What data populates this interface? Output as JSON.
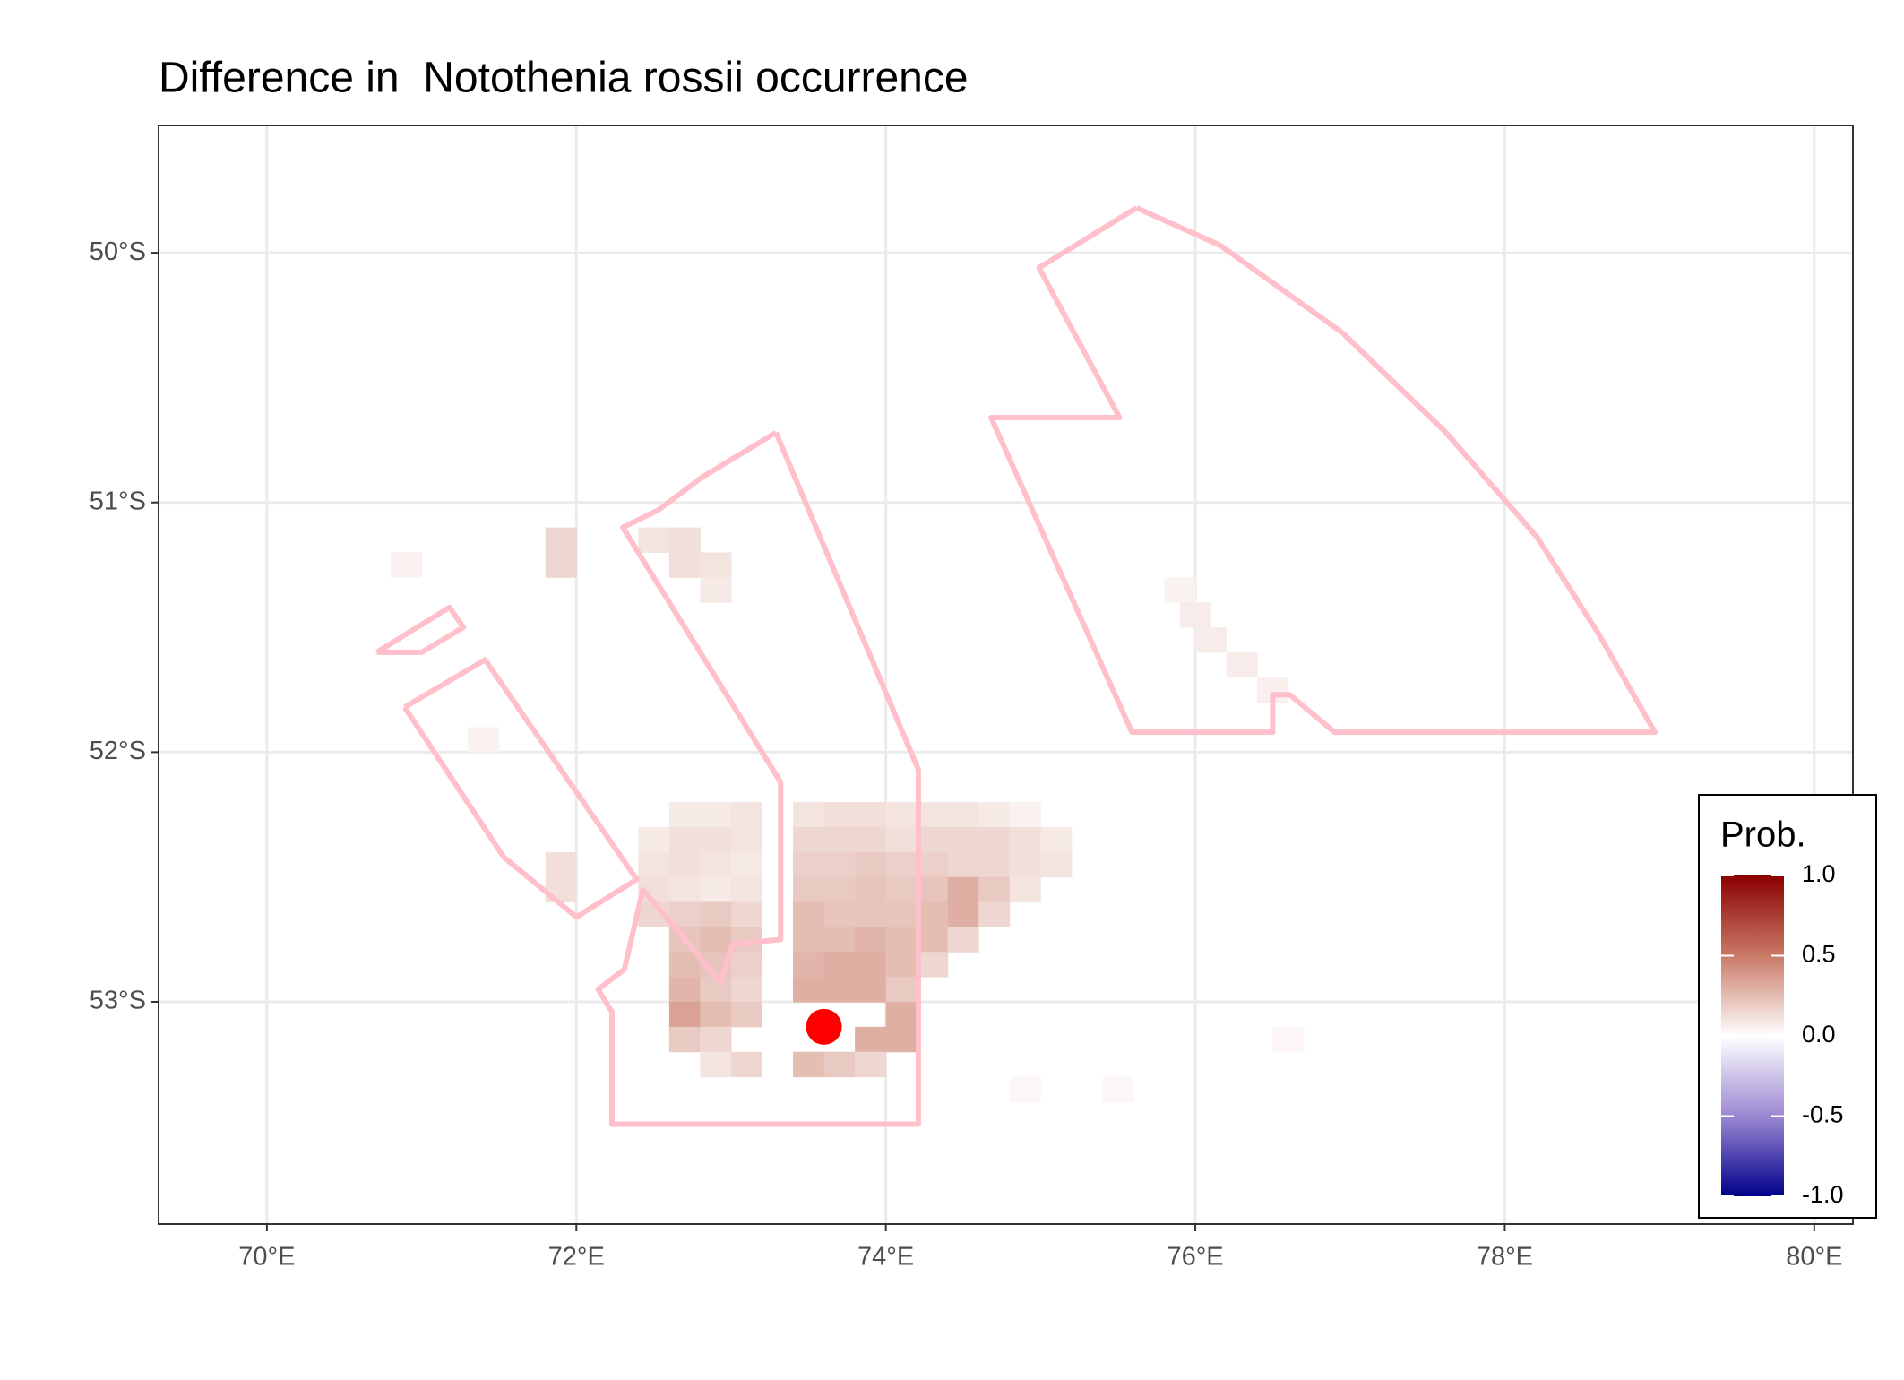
{
  "chart_data": {
    "type": "raster-map",
    "title": "Difference in  Notothenia rossii occurrence",
    "xlim": [
      69.3,
      80.25
    ],
    "ylim": [
      -53.89,
      -49.49
    ],
    "xticks": [
      {
        "value": 70,
        "label": "70°E"
      },
      {
        "value": 72,
        "label": "72°E"
      },
      {
        "value": 74,
        "label": "74°E"
      },
      {
        "value": 76,
        "label": "76°E"
      },
      {
        "value": 78,
        "label": "78°E"
      },
      {
        "value": 80,
        "label": "80°E"
      }
    ],
    "yticks": [
      {
        "value": -50,
        "label": "50°S"
      },
      {
        "value": -51,
        "label": "51°S"
      },
      {
        "value": -52,
        "label": "52°S"
      },
      {
        "value": -53,
        "label": "53°S"
      }
    ],
    "grid": true,
    "cell_size": [
      0.2,
      0.1
    ],
    "cells": [
      [
        72.7,
        -52.25,
        0.08
      ],
      [
        72.9,
        -52.25,
        0.08
      ],
      [
        73.1,
        -52.25,
        0.1
      ],
      [
        73.5,
        -52.25,
        0.1
      ],
      [
        73.7,
        -52.25,
        0.12
      ],
      [
        73.9,
        -52.25,
        0.12
      ],
      [
        74.1,
        -52.25,
        0.1
      ],
      [
        74.3,
        -52.25,
        0.1
      ],
      [
        74.5,
        -52.25,
        0.1
      ],
      [
        74.7,
        -52.25,
        0.08
      ],
      [
        74.9,
        -52.25,
        0.05
      ],
      [
        72.5,
        -52.35,
        0.08
      ],
      [
        72.7,
        -52.35,
        0.12
      ],
      [
        72.9,
        -52.35,
        0.12
      ],
      [
        73.1,
        -52.35,
        0.1
      ],
      [
        73.5,
        -52.35,
        0.15
      ],
      [
        73.7,
        -52.35,
        0.15
      ],
      [
        73.9,
        -52.35,
        0.15
      ],
      [
        74.1,
        -52.35,
        0.12
      ],
      [
        74.3,
        -52.35,
        0.15
      ],
      [
        74.5,
        -52.35,
        0.15
      ],
      [
        74.7,
        -52.35,
        0.15
      ],
      [
        74.9,
        -52.35,
        0.12
      ],
      [
        75.1,
        -52.35,
        0.08
      ],
      [
        72.5,
        -52.45,
        0.1
      ],
      [
        72.7,
        -52.45,
        0.12
      ],
      [
        72.9,
        -52.45,
        0.1
      ],
      [
        73.1,
        -52.45,
        0.08
      ],
      [
        73.5,
        -52.45,
        0.18
      ],
      [
        73.7,
        -52.45,
        0.18
      ],
      [
        73.9,
        -52.45,
        0.2
      ],
      [
        74.1,
        -52.45,
        0.18
      ],
      [
        74.3,
        -52.45,
        0.18
      ],
      [
        74.5,
        -52.45,
        0.15
      ],
      [
        74.7,
        -52.45,
        0.15
      ],
      [
        74.9,
        -52.45,
        0.12
      ],
      [
        75.1,
        -52.45,
        0.1
      ],
      [
        72.5,
        -52.55,
        0.12
      ],
      [
        72.7,
        -52.55,
        0.1
      ],
      [
        72.9,
        -52.55,
        0.08
      ],
      [
        73.1,
        -52.55,
        0.1
      ],
      [
        73.5,
        -52.55,
        0.2
      ],
      [
        73.7,
        -52.55,
        0.2
      ],
      [
        73.9,
        -52.55,
        0.22
      ],
      [
        74.1,
        -52.55,
        0.2
      ],
      [
        74.3,
        -52.55,
        0.22
      ],
      [
        74.5,
        -52.55,
        0.3
      ],
      [
        74.7,
        -52.55,
        0.2
      ],
      [
        74.9,
        -52.55,
        0.1
      ],
      [
        72.5,
        -52.65,
        0.15
      ],
      [
        72.7,
        -52.65,
        0.18
      ],
      [
        72.9,
        -52.65,
        0.2
      ],
      [
        73.1,
        -52.65,
        0.15
      ],
      [
        73.5,
        -52.65,
        0.25
      ],
      [
        73.7,
        -52.65,
        0.22
      ],
      [
        73.9,
        -52.65,
        0.22
      ],
      [
        74.1,
        -52.65,
        0.22
      ],
      [
        74.3,
        -52.65,
        0.25
      ],
      [
        74.5,
        -52.65,
        0.3
      ],
      [
        74.7,
        -52.65,
        0.15
      ],
      [
        72.7,
        -52.75,
        0.22
      ],
      [
        72.9,
        -52.75,
        0.25
      ],
      [
        73.1,
        -52.75,
        0.2
      ],
      [
        73.5,
        -52.75,
        0.25
      ],
      [
        73.7,
        -52.75,
        0.25
      ],
      [
        73.9,
        -52.75,
        0.28
      ],
      [
        74.1,
        -52.75,
        0.25
      ],
      [
        74.3,
        -52.75,
        0.25
      ],
      [
        74.5,
        -52.75,
        0.15
      ],
      [
        72.7,
        -52.85,
        0.25
      ],
      [
        72.9,
        -52.85,
        0.22
      ],
      [
        73.1,
        -52.85,
        0.18
      ],
      [
        73.5,
        -52.85,
        0.28
      ],
      [
        73.7,
        -52.85,
        0.3
      ],
      [
        73.9,
        -52.85,
        0.3
      ],
      [
        74.1,
        -52.85,
        0.25
      ],
      [
        74.3,
        -52.85,
        0.15
      ],
      [
        72.7,
        -52.95,
        0.28
      ],
      [
        72.9,
        -52.95,
        0.2
      ],
      [
        73.1,
        -52.95,
        0.15
      ],
      [
        73.5,
        -52.95,
        0.3
      ],
      [
        73.7,
        -52.95,
        0.3
      ],
      [
        73.9,
        -52.95,
        0.3
      ],
      [
        74.1,
        -52.95,
        0.2
      ],
      [
        72.7,
        -53.05,
        0.35
      ],
      [
        72.9,
        -53.05,
        0.25
      ],
      [
        73.1,
        -53.05,
        0.2
      ],
      [
        74.1,
        -53.05,
        0.3
      ],
      [
        72.7,
        -53.15,
        0.2
      ],
      [
        72.9,
        -53.15,
        0.15
      ],
      [
        73.9,
        -53.15,
        0.3
      ],
      [
        74.1,
        -53.15,
        0.3
      ],
      [
        72.9,
        -53.25,
        0.1
      ],
      [
        73.1,
        -53.25,
        0.15
      ],
      [
        73.5,
        -53.25,
        0.25
      ],
      [
        73.7,
        -53.25,
        0.2
      ],
      [
        73.9,
        -53.25,
        0.15
      ],
      [
        71.9,
        -51.15,
        0.15
      ],
      [
        72.5,
        -51.15,
        0.1
      ],
      [
        72.7,
        -51.15,
        0.12
      ],
      [
        71.9,
        -51.25,
        0.15
      ],
      [
        72.7,
        -51.25,
        0.12
      ],
      [
        72.9,
        -51.25,
        0.1
      ],
      [
        70.9,
        -51.25,
        0.05
      ],
      [
        72.9,
        -51.35,
        0.08
      ],
      [
        75.9,
        -51.35,
        0.05
      ],
      [
        76.0,
        -51.45,
        0.07
      ],
      [
        76.1,
        -51.55,
        0.07
      ],
      [
        76.3,
        -51.65,
        0.07
      ],
      [
        76.5,
        -51.75,
        0.06
      ],
      [
        71.9,
        -52.45,
        0.12
      ],
      [
        71.9,
        -52.55,
        0.12
      ],
      [
        71.4,
        -51.95,
        0.05
      ],
      [
        74.9,
        -53.35,
        0.03
      ],
      [
        75.5,
        -53.35,
        0.03
      ],
      [
        76.6,
        -53.15,
        0.03
      ]
    ],
    "polygon_color": "#ffc0cb",
    "polygons": [
      {
        "lon": [
          75.62,
          74.99,
          75.51,
          74.68,
          75.59,
          76.5,
          76.5,
          76.61,
          76.9,
          78.97,
          78.61,
          78.21,
          77.62,
          76.95,
          76.16,
          75.62
        ],
        "lat": [
          -49.82,
          -50.06,
          -50.66,
          -50.66,
          -51.92,
          -51.92,
          -51.77,
          -51.77,
          -51.92,
          -51.92,
          -51.53,
          -51.14,
          -50.72,
          -50.32,
          -49.97,
          -49.82
        ]
      },
      {
        "lon": [
          73.29,
          72.81,
          72.53,
          72.3,
          73.32,
          73.32,
          73.01,
          72.93,
          72.43,
          72.31,
          72.14,
          72.23,
          72.23,
          74.21,
          74.21,
          73.29
        ],
        "lat": [
          -50.72,
          -50.9,
          -51.03,
          -51.1,
          -52.12,
          -52.75,
          -52.77,
          -52.92,
          -52.55,
          -52.87,
          -52.95,
          -53.04,
          -53.49,
          -53.49,
          -52.07,
          -50.72
        ]
      },
      {
        "lon": [
          70.89,
          71.41,
          72.39,
          72.0,
          71.53,
          70.89
        ],
        "lat": [
          -51.82,
          -51.63,
          -52.51,
          -52.66,
          -52.42,
          -51.82
        ]
      },
      {
        "lon": [
          70.71,
          71.18,
          71.27,
          71.0,
          70.71
        ],
        "lat": [
          -51.6,
          -51.42,
          -51.5,
          -51.6,
          -51.6
        ]
      }
    ],
    "point": {
      "lon": 73.6,
      "lat": -53.1,
      "color": "#ff0000"
    },
    "legend": {
      "title": "Prob.",
      "limits": [
        -1,
        1
      ],
      "stops": [
        -1,
        -0.5,
        0,
        0.5,
        1
      ],
      "colors": [
        "#00008b",
        "#9c88d2",
        "#ffffff",
        "#c97a66",
        "#8b0000"
      ],
      "ticks": [
        {
          "value": 1,
          "label": "1.0"
        },
        0.5,
        {
          "value": 0,
          "label": "0.0"
        },
        -0.5,
        {
          "value": -1,
          "label": "-1.0"
        }
      ]
    }
  }
}
